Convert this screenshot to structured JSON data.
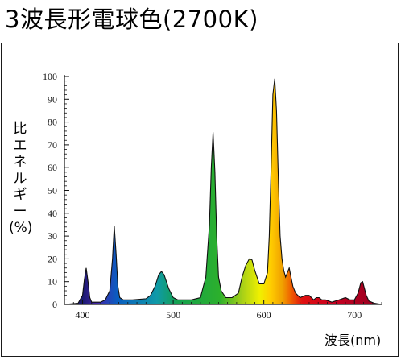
{
  "title": "3波長形電球色(2700K)",
  "chart_data": {
    "type": "area",
    "title": "3波長形電球色(2700K)",
    "xlabel": "波長(nm)",
    "ylabel": "比エネルギー(%)",
    "ylabel_lines": [
      "比",
      "エ",
      "ネ",
      "ル",
      "ギ",
      "ー",
      "(%)"
    ],
    "xlim": [
      380,
      730
    ],
    "ylim": [
      0,
      100
    ],
    "x_ticks": [
      400,
      500,
      600,
      700
    ],
    "y_ticks": [
      0,
      10,
      20,
      30,
      40,
      50,
      60,
      70,
      80,
      90,
      100
    ],
    "grid": false,
    "series": [
      {
        "x": [
          380,
          395,
          400,
          402,
          404,
          406,
          408,
          410,
          420,
          425,
          430,
          433,
          435,
          437,
          439,
          441,
          445,
          455,
          470,
          475,
          480,
          484,
          487,
          490,
          495,
          500,
          505,
          510,
          520,
          530,
          536,
          540,
          542,
          544,
          546,
          548,
          550,
          553,
          558,
          565,
          572,
          576,
          580,
          584,
          587,
          590,
          595,
          600,
          604,
          606,
          608,
          610,
          612,
          614,
          616,
          618,
          620,
          622,
          624,
          626,
          628,
          630,
          632,
          635,
          640,
          646,
          650,
          655,
          658,
          661,
          664,
          668,
          675,
          683,
          690,
          695,
          700,
          704,
          707,
          709,
          711,
          713,
          716,
          722,
          730
        ],
        "y": [
          0,
          0.5,
          4,
          11,
          16,
          10,
          3,
          1,
          1,
          2,
          6,
          20,
          34.5,
          22,
          8,
          3,
          2,
          2,
          2.5,
          4,
          8,
          13,
          14.5,
          13,
          7,
          3,
          2,
          2,
          2,
          3,
          12,
          35,
          60,
          75.5,
          58,
          30,
          12,
          6,
          3,
          3,
          5,
          12,
          17,
          20,
          19.5,
          15,
          9,
          9,
          14,
          30,
          60,
          92,
          99,
          85,
          55,
          30,
          20,
          15,
          12,
          14,
          16,
          12,
          8,
          5,
          3,
          4,
          4,
          2,
          3,
          3,
          2,
          2,
          1,
          2,
          3,
          2,
          2,
          5,
          9.5,
          10,
          7,
          4,
          1.5,
          0.5,
          0
        ]
      }
    ],
    "colors": {
      "spectrum": [
        "#1a1a70",
        "#4424a8",
        "#0a5cc0",
        "#0f9aa8",
        "#14a050",
        "#2cb02c",
        "#a8d018",
        "#f0f000",
        "#ffcc00",
        "#f0a000",
        "#f06000",
        "#e01010",
        "#c80020",
        "#a00020"
      ]
    }
  }
}
